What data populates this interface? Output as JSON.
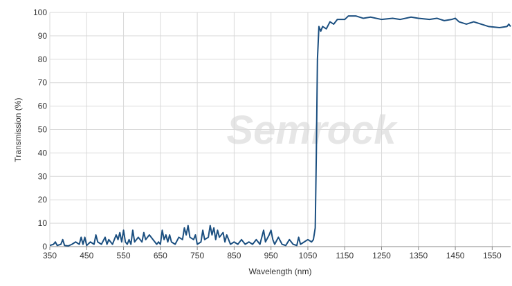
{
  "chart_data": {
    "type": "line",
    "watermark": "Semrock",
    "x_label": "Wavelength (nm)",
    "y_label": "Transmission (%)",
    "xlim": [
      350,
      1600
    ],
    "ylim": [
      0,
      100
    ],
    "xticks": [
      350,
      450,
      550,
      650,
      750,
      850,
      950,
      1050,
      1150,
      1250,
      1350,
      1450,
      1550
    ],
    "yticks": [
      0,
      10,
      20,
      30,
      40,
      50,
      60,
      70,
      80,
      90,
      100
    ],
    "grid": true,
    "series": [
      {
        "color": "#1b4f80",
        "x": [
          350,
          360,
          365,
          370,
          380,
          385,
          390,
          400,
          410,
          420,
          430,
          435,
          440,
          445,
          450,
          460,
          470,
          475,
          480,
          490,
          500,
          505,
          510,
          520,
          530,
          535,
          540,
          545,
          550,
          555,
          560,
          565,
          570,
          575,
          580,
          590,
          600,
          605,
          610,
          620,
          630,
          640,
          645,
          650,
          655,
          660,
          665,
          670,
          675,
          680,
          690,
          700,
          710,
          715,
          720,
          725,
          730,
          740,
          745,
          750,
          760,
          765,
          770,
          780,
          785,
          790,
          795,
          800,
          805,
          810,
          820,
          825,
          830,
          840,
          850,
          860,
          870,
          880,
          890,
          900,
          910,
          920,
          930,
          935,
          945,
          950,
          955,
          960,
          970,
          980,
          990,
          1000,
          1010,
          1020,
          1025,
          1030,
          1040,
          1050,
          1060,
          1065,
          1070,
          1073,
          1076,
          1080,
          1085,
          1090,
          1100,
          1110,
          1120,
          1130,
          1150,
          1160,
          1180,
          1200,
          1220,
          1250,
          1280,
          1300,
          1330,
          1350,
          1380,
          1400,
          1420,
          1440,
          1450,
          1460,
          1480,
          1500,
          1520,
          1540,
          1570,
          1590,
          1595,
          1600
        ],
        "values": [
          0.5,
          1,
          2,
          0.5,
          1,
          3,
          0.5,
          0.3,
          1,
          2,
          1,
          4,
          1,
          4,
          0.5,
          2,
          1,
          5,
          2,
          1,
          4,
          1,
          3,
          1,
          5,
          3,
          6,
          2,
          7,
          2,
          1,
          3,
          1,
          7,
          2,
          4,
          2,
          6,
          3,
          5,
          3,
          1,
          2,
          1,
          7,
          3,
          5,
          2,
          5,
          2,
          1,
          4,
          3,
          8,
          5,
          9,
          4,
          3,
          5,
          1,
          2,
          7,
          3,
          4,
          9,
          5,
          8,
          3,
          7,
          4,
          6,
          2,
          5,
          1,
          2,
          1,
          3,
          1,
          2,
          1,
          3,
          1,
          7,
          2,
          5,
          7,
          3,
          1,
          4,
          1,
          0.5,
          3,
          1,
          0.5,
          4,
          1,
          2,
          3,
          2,
          3,
          8,
          40,
          80,
          94,
          92,
          94,
          93,
          96,
          95,
          97,
          97,
          98.5,
          98.5,
          97.5,
          98,
          97,
          97.5,
          97,
          98,
          97.5,
          97,
          97.5,
          96.5,
          97,
          97.5,
          96,
          95,
          96,
          95,
          94,
          93.5,
          94,
          95,
          94
        ]
      }
    ]
  }
}
